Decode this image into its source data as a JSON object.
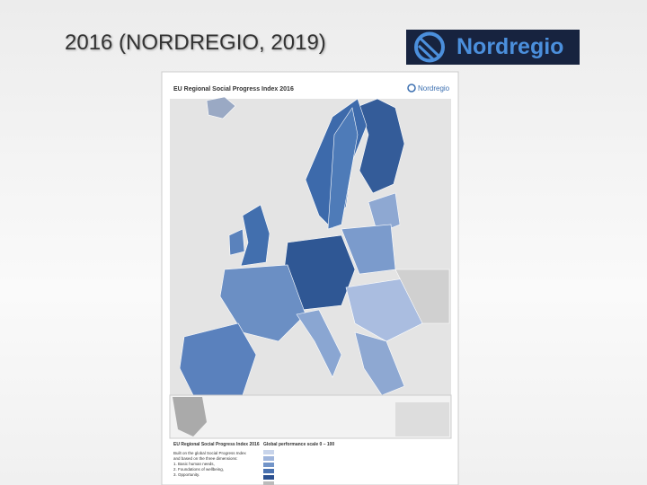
{
  "slide": {
    "title": "2016 (NORDREGIO, 2019)",
    "logo": "Nordregio"
  },
  "map": {
    "title": "EU Regional Social Progress Index 2016",
    "logo": "Nordregio",
    "legend": {
      "title": "EU Regional Social Progress Index 2016",
      "description": [
        "Built on the global Social Progress Index",
        "and based on the three dimensions:",
        "1. Basic human needs,",
        "2. Foundations of wellbeing,",
        "3. Opportunity."
      ],
      "scale_title": "Global performance scale 0 – 100"
    }
  }
}
